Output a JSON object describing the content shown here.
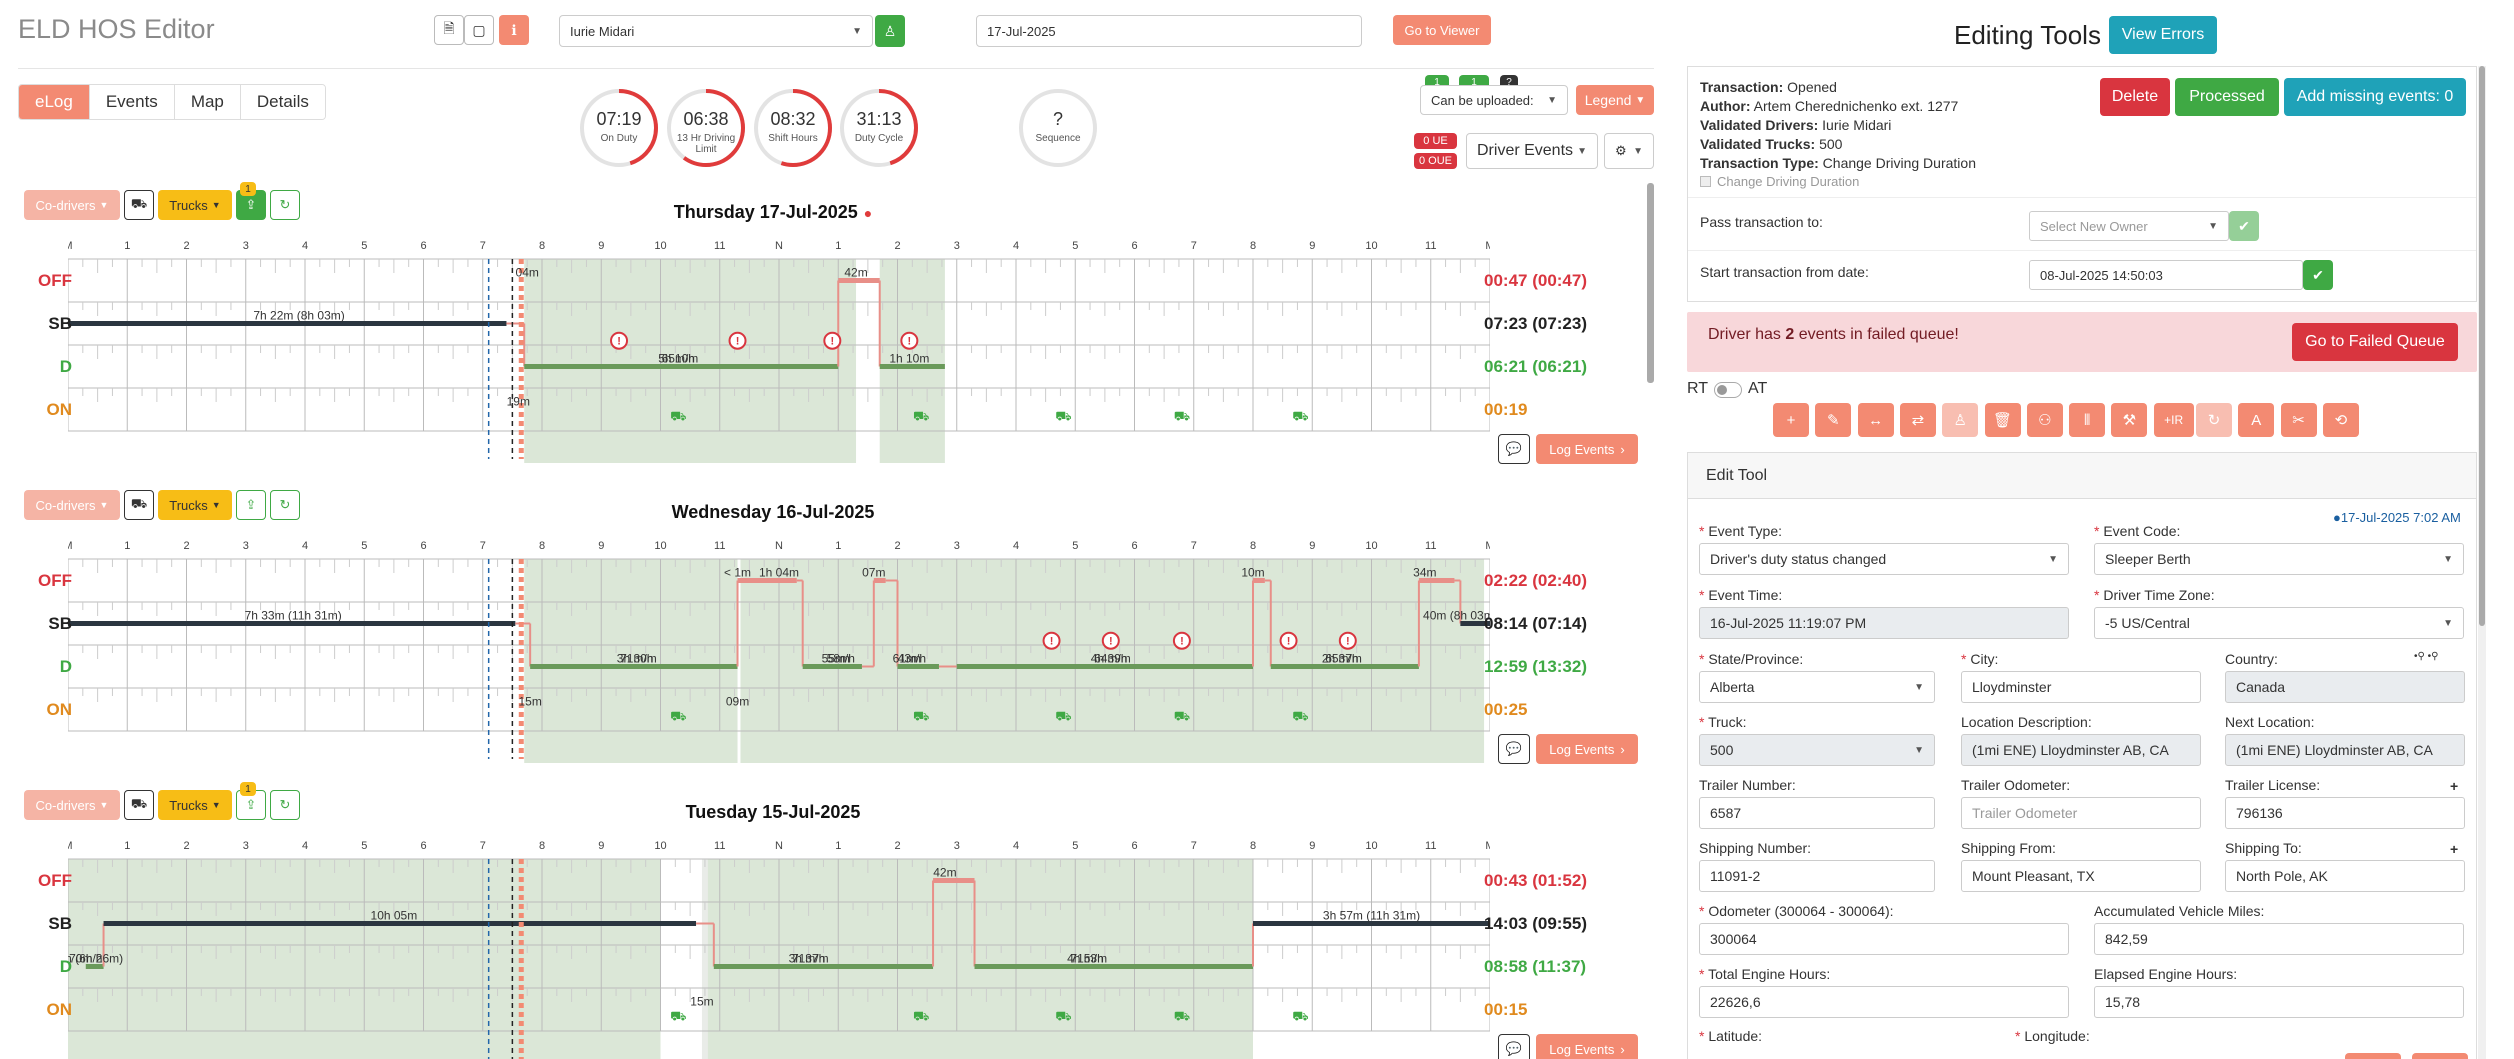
{
  "header": {
    "title": "ELD HOS Editor",
    "driver": "Iurie Midari",
    "date": "17-Jul-2025",
    "go_viewer": "Go to Viewer"
  },
  "tabs": [
    "eLog",
    "Events",
    "Map",
    "Details"
  ],
  "gauges": [
    {
      "value": "07:19",
      "label": "On Duty",
      "level": 0.45
    },
    {
      "value": "06:38",
      "label": "13 Hr Driving Limit",
      "level": 0.6
    },
    {
      "value": "08:32",
      "label": "Shift Hours",
      "level": 0.55
    },
    {
      "value": "31:13",
      "label": "Duty Cycle",
      "level": 0.45
    },
    {
      "value": "?",
      "label": "Sequence",
      "level": 0
    }
  ],
  "upload": {
    "select": "Can be uploaded:",
    "legend": "Legend",
    "badge_ue": "0 UE",
    "badge_oue": "0 OUE",
    "events_select": "Driver Events",
    "badges": [
      "1",
      "1",
      "?"
    ]
  },
  "chart_labels": {
    "hours": [
      "M",
      "1",
      "2",
      "3",
      "4",
      "5",
      "6",
      "7",
      "8",
      "9",
      "10",
      "11",
      "N",
      "1",
      "2",
      "3",
      "4",
      "5",
      "6",
      "7",
      "8",
      "9",
      "10",
      "11",
      "M"
    ],
    "rows": [
      "OFF",
      "SB",
      "D",
      "ON"
    ],
    "codrivers": "Co-drivers",
    "trucks": "Trucks",
    "log_events": "Log Events"
  },
  "days": [
    {
      "title": "Thursday 17-Jul-2025",
      "totals": [
        "00:47 (00:47)",
        "07:23 (07:23)",
        "06:21 (06:21)",
        "00:19"
      ],
      "badge": "1",
      "labels": [
        {
          "t": "7h 22m (8h 03m)",
          "h": 3.9,
          "r": 1
        },
        {
          "t": "5h 10m",
          "h": 10.3,
          "r": 2
        },
        {
          "t": "65m/h",
          "h": 10.3,
          "r": 2.45
        },
        {
          "t": "1h 10m",
          "h": 14.2,
          "r": 2
        },
        {
          "t": "42m",
          "h": 13.3,
          "r": 0
        },
        {
          "t": "04m",
          "h": 7.75,
          "r": 0
        },
        {
          "t": "19m",
          "h": 7.6,
          "r": 3
        }
      ]
    },
    {
      "title": "Wednesday 16-Jul-2025",
      "totals": [
        "02:22 (02:40)",
        "08:14 (07:14)",
        "12:59 (13:32)",
        "00:25"
      ],
      "badge": "",
      "labels": [
        {
          "t": "7h 33m (11h 31m)",
          "h": 3.8,
          "r": 1
        },
        {
          "t": "3h 30m",
          "h": 9.6,
          "r": 2
        },
        {
          "t": "71m/h",
          "h": 9.6,
          "r": 2.45
        },
        {
          "t": "1h 04m",
          "h": 12.0,
          "r": 0
        },
        {
          "t": "58m",
          "h": 13.0,
          "r": 2
        },
        {
          "t": "55m/h",
          "h": 13.0,
          "r": 2.45
        },
        {
          "t": "07m",
          "h": 13.6,
          "r": 0
        },
        {
          "t": "43m",
          "h": 14.2,
          "r": 2
        },
        {
          "t": "61m/h",
          "h": 14.2,
          "r": 2.45
        },
        {
          "t": "4h 39m",
          "h": 17.6,
          "r": 2
        },
        {
          "t": "64m/h",
          "h": 17.6,
          "r": 2.45
        },
        {
          "t": "10m",
          "h": 20.0,
          "r": 0
        },
        {
          "t": "2h 37m",
          "h": 21.5,
          "r": 2
        },
        {
          "t": "65m/h",
          "h": 21.5,
          "r": 2.45
        },
        {
          "t": "34m",
          "h": 22.9,
          "r": 0
        },
        {
          "t": "40m (8h 03m)",
          "h": 23.5,
          "r": 1
        },
        {
          "t": "09m",
          "h": 11.3,
          "r": 3
        },
        {
          "t": "15m",
          "h": 7.8,
          "r": 3
        },
        {
          "t": "< 1m",
          "h": 11.3,
          "r": 0
        }
      ]
    },
    {
      "title": "Tuesday 15-Jul-2025",
      "totals": [
        "00:43 (01:52)",
        "14:03 (09:55)",
        "08:58 (11:37)",
        "00:15"
      ],
      "badge": "1",
      "labels": [
        {
          "t": "10h 05m",
          "h": 5.5,
          "r": 1
        },
        {
          "t": "3h 37m",
          "h": 12.5,
          "r": 2
        },
        {
          "t": "71m/h",
          "h": 12.5,
          "r": 2.45
        },
        {
          "t": "4h 53m",
          "h": 17.2,
          "r": 2
        },
        {
          "t": "71m/h",
          "h": 17.2,
          "r": 2.45
        },
        {
          "t": "42m",
          "h": 14.8,
          "r": 0
        },
        {
          "t": "3h 57m (11h 31m)",
          "h": 22.0,
          "r": 1
        },
        {
          "t": "37m (6h 26m)",
          "h": 0.3,
          "r": 2
        },
        {
          "t": "70m/h",
          "h": 0.3,
          "r": 2.45
        },
        {
          "t": "15m",
          "h": 10.7,
          "r": 3
        }
      ]
    }
  ],
  "right": {
    "title": "Editing Tools",
    "view_errors": "View Errors",
    "info": [
      {
        "k": "Transaction:",
        "v": "Opened"
      },
      {
        "k": "Author:",
        "v": "Artem Cherednichenko ext. 1277"
      },
      {
        "k": "Validated Drivers:",
        "v": "Iurie Midari"
      },
      {
        "k": "Validated Trucks:",
        "v": "500"
      },
      {
        "k": "Transaction Type:",
        "v": "Change Driving Duration"
      }
    ],
    "checkbox": "Change Driving Duration",
    "delete": "Delete",
    "processed": "Processed",
    "add_missing": "Add missing events: 0",
    "pass_label": "Pass transaction to:",
    "pass_ph": "Select New Owner",
    "start_label": "Start transaction from date:",
    "start_value": "08-Jul-2025 14:50:03",
    "failed_pre": "Driver has ",
    "failed_num": "2",
    "failed_post": " events in failed queue!",
    "failed_btn": "Go to Failed Queue",
    "rt": "RT",
    "at": "AT",
    "edit_tool": "Edit Tool",
    "edit_date": "17-Jul-2025 7:02 AM",
    "fields": {
      "event_type": {
        "label": "Event Type:",
        "value": "Driver's duty status changed"
      },
      "event_code": {
        "label": "Event Code:",
        "value": "Sleeper Berth"
      },
      "event_time": {
        "label": "Event Time:",
        "value": "16-Jul-2025 11:19:07 PM"
      },
      "tz": {
        "label": "Driver Time Zone:",
        "value": "-5 US/Central"
      },
      "state": {
        "label": "State/Province:",
        "value": "Alberta"
      },
      "city": {
        "label": "City:",
        "value": "Lloydminster"
      },
      "country": {
        "label": "Country:",
        "value": "Canada"
      },
      "truck": {
        "label": "Truck:",
        "value": "500"
      },
      "loc_desc": {
        "label": "Location Description:",
        "value": "(1mi ENE) Lloydminster AB, CA"
      },
      "next_loc": {
        "label": "Next Location:",
        "value": "(1mi ENE) Lloydminster AB, CA"
      },
      "trailer_num": {
        "label": "Trailer Number:",
        "value": "6587"
      },
      "trailer_odo": {
        "label": "Trailer Odometer:",
        "placeholder": "Trailer Odometer"
      },
      "trailer_lic": {
        "label": "Trailer License:",
        "value": "796136"
      },
      "ship_num": {
        "label": "Shipping Number:",
        "value": "11091-2"
      },
      "ship_from": {
        "label": "Shipping From:",
        "value": "Mount Pleasant, TX"
      },
      "ship_to": {
        "label": "Shipping To:",
        "value": "North Pole, AK"
      },
      "odometer": {
        "label": "Odometer (300064 - 300064):",
        "value": "300064"
      },
      "acc_miles": {
        "label": "Accumulated Vehicle Miles:",
        "value": "842,59"
      },
      "eng_hours": {
        "label": "Total Engine Hours:",
        "value": "22626,6"
      },
      "elapsed": {
        "label": "Elapsed Engine Hours:",
        "value": "15,78"
      },
      "lat": {
        "label": "Latitude:"
      },
      "lon": {
        "label": "Longitude:"
      }
    }
  },
  "colors": {
    "accent": "#f38a72",
    "green": "#3fa944",
    "teal": "#1fa2b8",
    "red": "#d9353f",
    "yellow": "#f7bd16",
    "duty_green": "#dce8d8",
    "drive_line": "#6a9a5a",
    "sb_line": "#2b3640"
  }
}
